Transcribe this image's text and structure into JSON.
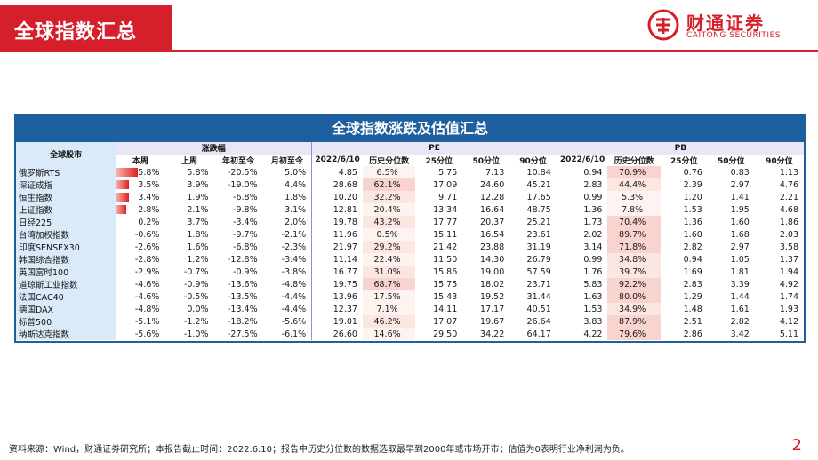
{
  "header": {
    "title": "全球指数汇总"
  },
  "logo": {
    "name_cn": "财通证券",
    "name_en": "CAITONG SECURITIES"
  },
  "panel": {
    "title": "全球指数涨跌及估值汇总"
  },
  "table": {
    "stock_header": "全球股市",
    "groups": [
      "涨跌幅",
      "PE",
      "PB"
    ],
    "subheaders": {
      "change": [
        "本周",
        "上周",
        "年初至今",
        "月初至今"
      ],
      "pe": [
        "2022/6/10",
        "历史分位数",
        "25分位",
        "50分位",
        "90分位"
      ],
      "pb": [
        "2022/6/10",
        "历史分位数",
        "25分位",
        "50分位",
        "90分位"
      ]
    },
    "rows": [
      {
        "name": "俄罗斯RTS",
        "week": "5.8%",
        "prev": "5.8%",
        "ytd": "-20.5%",
        "mtd": "5.0%",
        "pe": "4.85",
        "pe_pct": "6.5%",
        "pe25": "5.75",
        "pe50": "7.13",
        "pe90": "10.84",
        "pb": "0.94",
        "pb_pct": "70.9%",
        "pb25": "0.76",
        "pb50": "0.83",
        "pb90": "1.13"
      },
      {
        "name": "深证成指",
        "week": "3.5%",
        "prev": "3.9%",
        "ytd": "-19.0%",
        "mtd": "4.4%",
        "pe": "28.68",
        "pe_pct": "62.1%",
        "pe25": "17.09",
        "pe50": "24.60",
        "pe90": "45.21",
        "pb": "2.83",
        "pb_pct": "44.4%",
        "pb25": "2.39",
        "pb50": "2.97",
        "pb90": "4.76"
      },
      {
        "name": "恒生指数",
        "week": "3.4%",
        "prev": "1.9%",
        "ytd": "-6.8%",
        "mtd": "1.8%",
        "pe": "10.20",
        "pe_pct": "32.2%",
        "pe25": "9.71",
        "pe50": "12.28",
        "pe90": "17.65",
        "pb": "0.99",
        "pb_pct": "5.3%",
        "pb25": "1.20",
        "pb50": "1.41",
        "pb90": "2.21"
      },
      {
        "name": "上证指数",
        "week": "2.8%",
        "prev": "2.1%",
        "ytd": "-9.8%",
        "mtd": "3.1%",
        "pe": "12.81",
        "pe_pct": "20.4%",
        "pe25": "13.34",
        "pe50": "16.64",
        "pe90": "48.75",
        "pb": "1.36",
        "pb_pct": "7.8%",
        "pb25": "1.53",
        "pb50": "1.95",
        "pb90": "4.68"
      },
      {
        "name": "日经225",
        "week": "0.2%",
        "prev": "3.7%",
        "ytd": "-3.4%",
        "mtd": "2.0%",
        "pe": "19.78",
        "pe_pct": "43.2%",
        "pe25": "17.77",
        "pe50": "20.37",
        "pe90": "25.21",
        "pb": "1.73",
        "pb_pct": "70.4%",
        "pb25": "1.36",
        "pb50": "1.60",
        "pb90": "1.86"
      },
      {
        "name": "台湾加权指数",
        "week": "-0.6%",
        "prev": "1.8%",
        "ytd": "-9.7%",
        "mtd": "-2.1%",
        "pe": "11.96",
        "pe_pct": "0.5%",
        "pe25": "15.11",
        "pe50": "16.54",
        "pe90": "23.61",
        "pb": "2.02",
        "pb_pct": "89.7%",
        "pb25": "1.60",
        "pb50": "1.68",
        "pb90": "2.03"
      },
      {
        "name": "印度SENSEX30",
        "week": "-2.6%",
        "prev": "1.6%",
        "ytd": "-6.8%",
        "mtd": "-2.3%",
        "pe": "21.97",
        "pe_pct": "29.2%",
        "pe25": "21.42",
        "pe50": "23.88",
        "pe90": "31.19",
        "pb": "3.14",
        "pb_pct": "71.8%",
        "pb25": "2.82",
        "pb50": "2.97",
        "pb90": "3.58"
      },
      {
        "name": "韩国综合指数",
        "week": "-2.8%",
        "prev": "1.2%",
        "ytd": "-12.8%",
        "mtd": "-3.4%",
        "pe": "11.14",
        "pe_pct": "22.4%",
        "pe25": "11.50",
        "pe50": "14.30",
        "pe90": "26.79",
        "pb": "0.99",
        "pb_pct": "34.8%",
        "pb25": "0.94",
        "pb50": "1.05",
        "pb90": "1.37"
      },
      {
        "name": "英国富时100",
        "week": "-2.9%",
        "prev": "-0.7%",
        "ytd": "-0.9%",
        "mtd": "-3.8%",
        "pe": "16.77",
        "pe_pct": "31.0%",
        "pe25": "15.86",
        "pe50": "19.00",
        "pe90": "57.59",
        "pb": "1.76",
        "pb_pct": "39.7%",
        "pb25": "1.69",
        "pb50": "1.81",
        "pb90": "1.94"
      },
      {
        "name": "道琼斯工业指数",
        "week": "-4.6%",
        "prev": "-0.9%",
        "ytd": "-13.6%",
        "mtd": "-4.8%",
        "pe": "19.75",
        "pe_pct": "68.7%",
        "pe25": "15.75",
        "pe50": "18.02",
        "pe90": "23.71",
        "pb": "5.83",
        "pb_pct": "92.2%",
        "pb25": "2.83",
        "pb50": "3.39",
        "pb90": "4.92"
      },
      {
        "name": "法国CAC40",
        "week": "-4.6%",
        "prev": "-0.5%",
        "ytd": "-13.5%",
        "mtd": "-4.4%",
        "pe": "13.96",
        "pe_pct": "17.5%",
        "pe25": "15.43",
        "pe50": "19.52",
        "pe90": "31.44",
        "pb": "1.63",
        "pb_pct": "80.0%",
        "pb25": "1.29",
        "pb50": "1.44",
        "pb90": "1.74"
      },
      {
        "name": "德国DAX",
        "week": "-4.8%",
        "prev": "0.0%",
        "ytd": "-13.4%",
        "mtd": "-4.4%",
        "pe": "12.37",
        "pe_pct": "7.1%",
        "pe25": "14.11",
        "pe50": "17.17",
        "pe90": "40.51",
        "pb": "1.53",
        "pb_pct": "34.9%",
        "pb25": "1.48",
        "pb50": "1.61",
        "pb90": "1.93"
      },
      {
        "name": "标普500",
        "week": "-5.1%",
        "prev": "-1.2%",
        "ytd": "-18.2%",
        "mtd": "-5.6%",
        "pe": "19.01",
        "pe_pct": "46.2%",
        "pe25": "17.07",
        "pe50": "19.67",
        "pe90": "26.64",
        "pb": "3.83",
        "pb_pct": "87.9%",
        "pb25": "2.51",
        "pb50": "2.82",
        "pb90": "4.12"
      },
      {
        "name": "纳斯达克指数",
        "week": "-5.6%",
        "prev": "-1.0%",
        "ytd": "-27.5%",
        "mtd": "-6.1%",
        "pe": "26.60",
        "pe_pct": "14.6%",
        "pe25": "29.50",
        "pe50": "34.22",
        "pe90": "64.17",
        "pb": "4.22",
        "pb_pct": "79.6%",
        "pb25": "2.86",
        "pb50": "3.42",
        "pb90": "5.11"
      }
    ]
  },
  "footer": {
    "text": "资料来源：Wind，财通证券研究所；本报告截止时间：2022.6.10；报告中历史分位数的数据选取最早到2000年或市场开市；估值为0表明行业净利润为负。"
  },
  "page_number": "2",
  "colors": {
    "brand_red": "#d51f2a",
    "panel_blue": "#1e5fa0"
  }
}
